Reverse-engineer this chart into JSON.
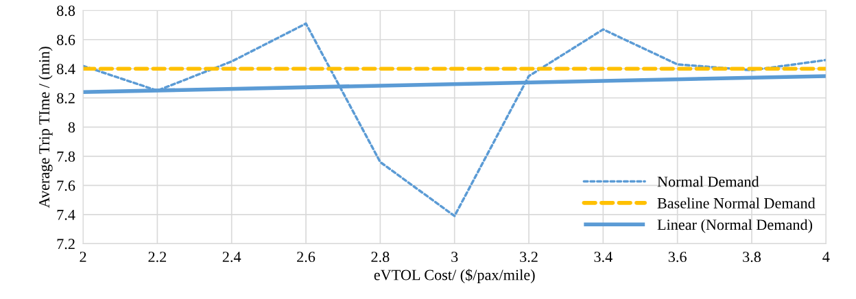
{
  "chart_data": {
    "type": "line",
    "xlabel": "eVTOL Cost/ ($/pax/mile)",
    "ylabel": "Average Trip TIme / (min)",
    "x": [
      2,
      2.2,
      2.4,
      2.6,
      2.8,
      3,
      3.2,
      3.4,
      3.6,
      3.8,
      4
    ],
    "series": [
      {
        "name": "Normal Demand",
        "color": "#5b9bd5",
        "line_style": "dashed",
        "values": [
          8.42,
          8.25,
          8.45,
          8.71,
          7.76,
          7.39,
          8.35,
          8.67,
          8.43,
          8.39,
          8.46
        ]
      },
      {
        "name": "Baseline Normal Demand",
        "color": "#ffc000",
        "line_style": "dashed",
        "values": [
          8.4,
          8.4,
          8.4,
          8.4,
          8.4,
          8.4,
          8.4,
          8.4,
          8.4,
          8.4,
          8.4
        ]
      },
      {
        "name": "Linear (Normal Demand)",
        "color": "#5b9bd5",
        "line_style": "solid",
        "x": [
          2,
          4
        ],
        "values": [
          8.24,
          8.35
        ]
      }
    ],
    "xlim": [
      2,
      4
    ],
    "xticks": [
      2,
      2.2,
      2.4,
      2.6,
      2.8,
      3,
      3.2,
      3.4,
      3.6,
      3.8,
      4
    ],
    "ylim": [
      7.2,
      8.8
    ],
    "yticks": [
      7.2,
      7.4,
      7.6,
      7.8,
      8,
      8.2,
      8.4,
      8.6,
      8.8
    ],
    "grid": true,
    "legend": "bottom right",
    "marker": "none"
  }
}
